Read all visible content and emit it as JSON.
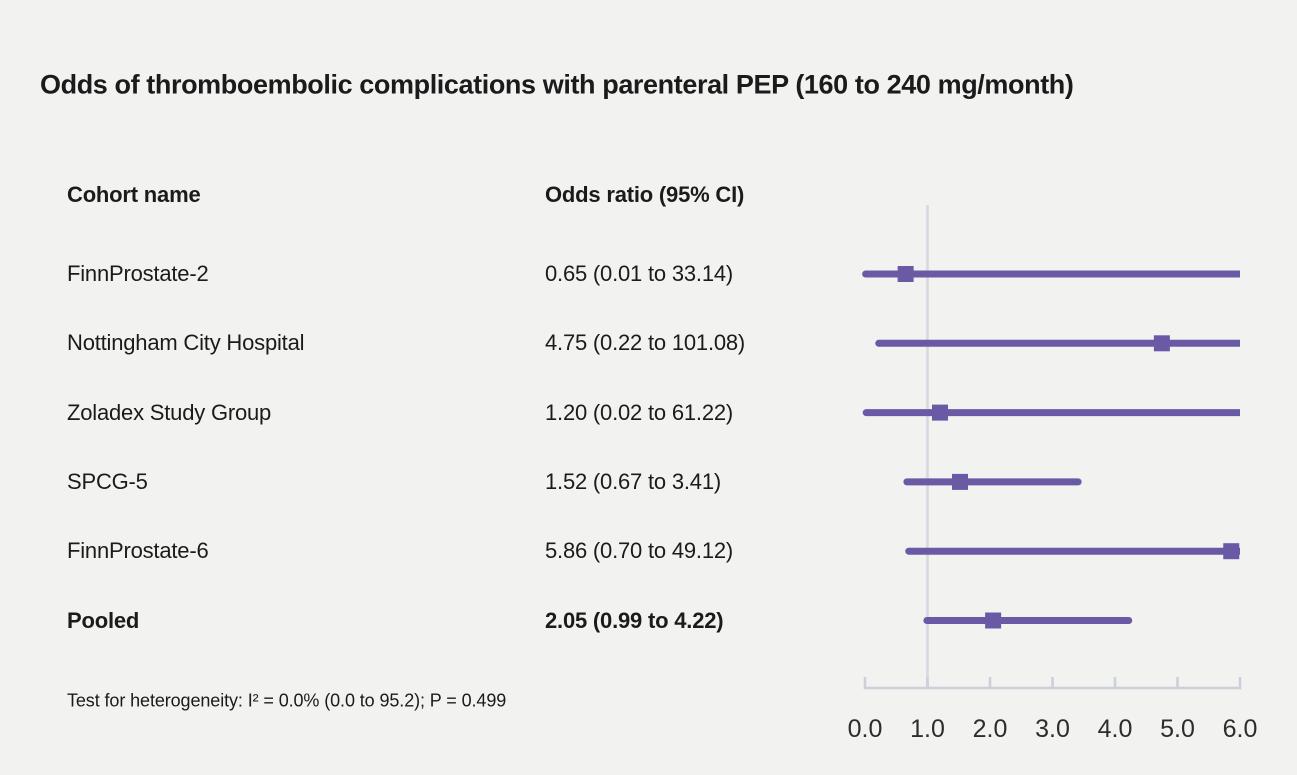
{
  "title": "Odds of thromboembolic complications with parenteral PEP (160 to 240 mg/month)",
  "columns": {
    "cohort": "Cohort name",
    "odds": "Odds ratio (95% CI)"
  },
  "footer": "Test for heterogeneity: I² = 0.0% (0.0 to 95.2); P = 0.499",
  "colors": {
    "background": "#f2f2f0",
    "series": "#6a5aa6",
    "reference_line": "#d6d9e0",
    "axis": "#ccd1d9",
    "tick_label": "#2d2d2d",
    "text": "#1b1b1b"
  },
  "chart_data": {
    "type": "forest",
    "title": "Odds of thromboembolic complications with parenteral PEP (160 to 240 mg/month)",
    "xlabel": "Odds ratio",
    "x_axis": {
      "min": 0.0,
      "max": 6.0,
      "ticks": [
        0.0,
        1.0,
        2.0,
        3.0,
        4.0,
        5.0,
        6.0
      ],
      "tick_labels": [
        "0.0",
        "1.0",
        "2.0",
        "3.0",
        "4.0",
        "5.0",
        "6.0"
      ],
      "reference_line": 1.0,
      "grid": false
    },
    "rows": [
      {
        "cohort": "FinnProstate-2",
        "or": 0.65,
        "ci_low": 0.01,
        "ci_high": 33.14,
        "label": "0.65 (0.01 to 33.14)",
        "bold": false
      },
      {
        "cohort": "Nottingham City Hospital",
        "or": 4.75,
        "ci_low": 0.22,
        "ci_high": 101.08,
        "label": "4.75 (0.22 to 101.08)",
        "bold": false
      },
      {
        "cohort": "Zoladex Study Group",
        "or": 1.2,
        "ci_low": 0.02,
        "ci_high": 61.22,
        "label": "1.20 (0.02 to 61.22)",
        "bold": false
      },
      {
        "cohort": "SPCG-5",
        "or": 1.52,
        "ci_low": 0.67,
        "ci_high": 3.41,
        "label": "1.52 (0.67 to 3.41)",
        "bold": false
      },
      {
        "cohort": "FinnProstate-6",
        "or": 5.86,
        "ci_low": 0.7,
        "ci_high": 49.12,
        "label": "5.86 (0.70 to 49.12)",
        "bold": false
      },
      {
        "cohort": "Pooled",
        "or": 2.05,
        "ci_low": 0.99,
        "ci_high": 4.22,
        "label": "2.05 (0.99 to 4.22)",
        "bold": true
      }
    ]
  }
}
